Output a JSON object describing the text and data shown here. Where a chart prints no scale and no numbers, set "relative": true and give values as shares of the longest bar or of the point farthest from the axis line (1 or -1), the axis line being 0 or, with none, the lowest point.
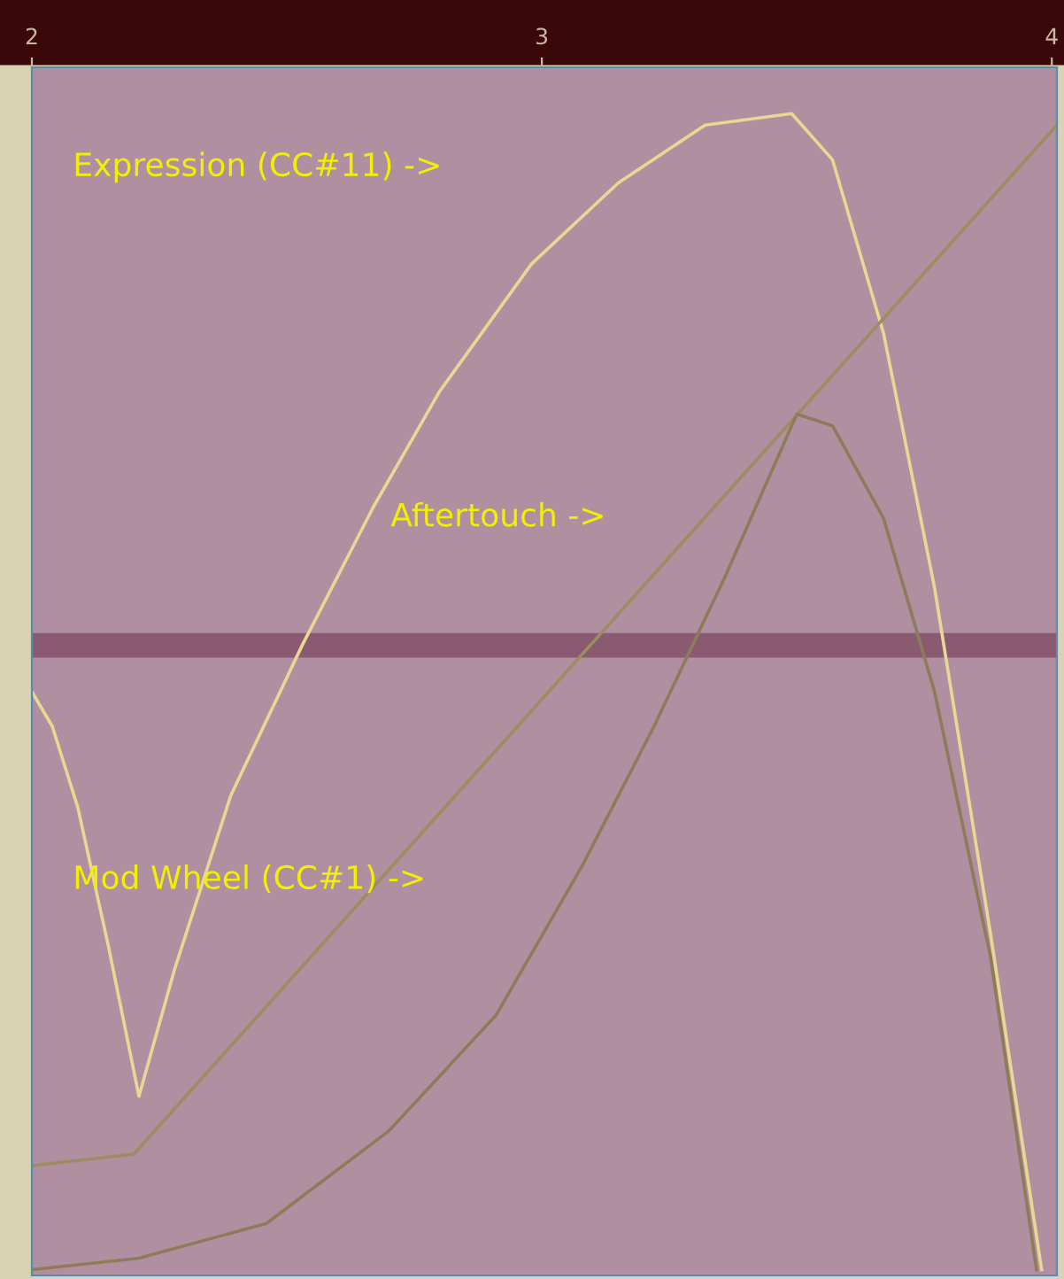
{
  "chart_data": {
    "type": "line",
    "relative": true,
    "xlim": [
      2,
      4.01
    ],
    "xticks": [
      2,
      3,
      4
    ],
    "tick_labels": "x",
    "grid": false,
    "legend": false,
    "annotations": [
      "Expression (CC#11) ->",
      "Aftertouch ->",
      "Mod Wheel (CC#1) ->"
    ],
    "ref_lines": [
      {
        "axis": "y",
        "value": 0.54,
        "color": "#8a5a70"
      }
    ],
    "series": [
      {
        "color": "#e8d894",
        "x": [
          2.0,
          2.04,
          2.09,
          2.15,
          2.21,
          2.28,
          2.39,
          2.53,
          2.67,
          2.8,
          2.98,
          3.15,
          3.32,
          3.49,
          3.57,
          3.67,
          3.77,
          3.88,
          3.98
        ],
        "values": [
          0.5,
          0.47,
          0.4,
          0.28,
          0.15,
          0.26,
          0.41,
          0.54,
          0.66,
          0.76,
          0.87,
          0.94,
          0.99,
          1.0,
          0.96,
          0.81,
          0.59,
          0.29,
          0.0
        ]
      },
      {
        "color": "#9c8c62",
        "x": [
          2.0,
          2.2,
          4.01
        ],
        "values": [
          0.09,
          0.1,
          0.99
        ]
      },
      {
        "color": "#8c7c5a",
        "x": [
          2.0,
          2.21,
          2.46,
          2.7,
          2.91,
          3.08,
          3.22,
          3.36,
          3.45,
          3.5,
          3.57,
          3.67,
          3.77,
          3.88,
          3.97
        ],
        "values": [
          0.0,
          0.01,
          0.04,
          0.12,
          0.22,
          0.35,
          0.47,
          0.6,
          0.69,
          0.74,
          0.73,
          0.65,
          0.5,
          0.27,
          0.0
        ]
      }
    ]
  }
}
